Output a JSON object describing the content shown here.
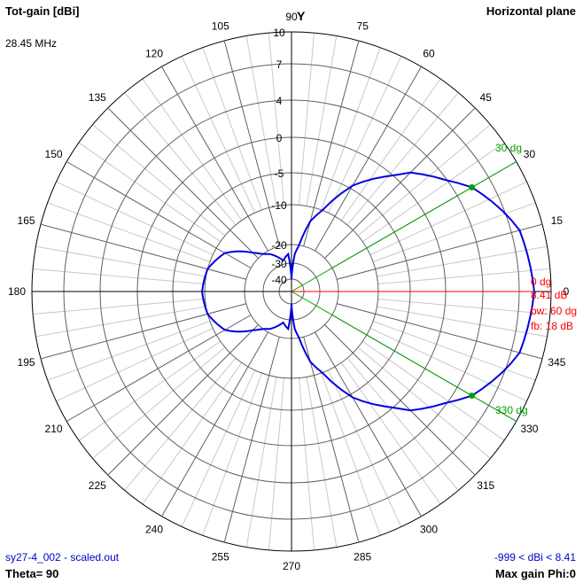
{
  "header": {
    "title": "Tot-gain [dBi]",
    "frequency": "28.45 MHz",
    "plane": "Horizontal plane",
    "axis_y_label": "Y"
  },
  "footer": {
    "filename": "sy27-4_002 - scaled.out",
    "theta": "Theta= 90",
    "range": "-999 < dBi < 8.41",
    "max_gain": "Max gain Phi:0"
  },
  "annotations": {
    "max_dir": "0 dg",
    "max_gain": "8.41 dB",
    "beamwidth": "bw: 60 dg",
    "front_back": "fb: 18 dB",
    "bw_low": "330 dg",
    "bw_high": "30 dg"
  },
  "colors": {
    "pattern": "#0000e0",
    "max_line": "#ff0000",
    "bw_lines": "#00a000",
    "grid_dark": "#606060",
    "grid_light": "#c8c8c8"
  },
  "chart_data": {
    "type": "polar",
    "title": "Tot-gain [dBi]",
    "subtitle": "Horizontal plane, 28.45 MHz, Theta= 90",
    "angle_ticks": [
      0,
      15,
      30,
      45,
      60,
      75,
      90,
      105,
      120,
      135,
      150,
      165,
      180,
      195,
      210,
      225,
      240,
      255,
      270,
      285,
      300,
      315,
      330,
      345
    ],
    "radial_ticks": [
      10,
      7,
      4,
      0,
      -5,
      -10,
      -20,
      -30,
      -40
    ],
    "radial_unit": "dBi",
    "max_gain_dbi": 8.41,
    "max_gain_phi": 0,
    "beamwidth_deg": 60,
    "beamwidth_markers_deg": [
      30,
      330
    ],
    "front_to_back_db": 18,
    "series": [
      {
        "name": "Tot-gain",
        "phi_deg": [
          0,
          15,
          30,
          45,
          60,
          75,
          85,
          90,
          95,
          105,
          120,
          135,
          150,
          165,
          180,
          195,
          210,
          225,
          240,
          255,
          265,
          270,
          275,
          285,
          300,
          315,
          330,
          345
        ],
        "gain_dbi": [
          8.41,
          7.8,
          5.4,
          1.5,
          -4.5,
          -13.5,
          -25,
          -40,
          -25,
          -28,
          -22,
          -18,
          -12.5,
          -10,
          -9.6,
          -10,
          -12.5,
          -18,
          -22,
          -28,
          -25,
          -40,
          -25,
          -13.5,
          -4.5,
          1.5,
          5.4,
          7.8
        ]
      }
    ]
  }
}
